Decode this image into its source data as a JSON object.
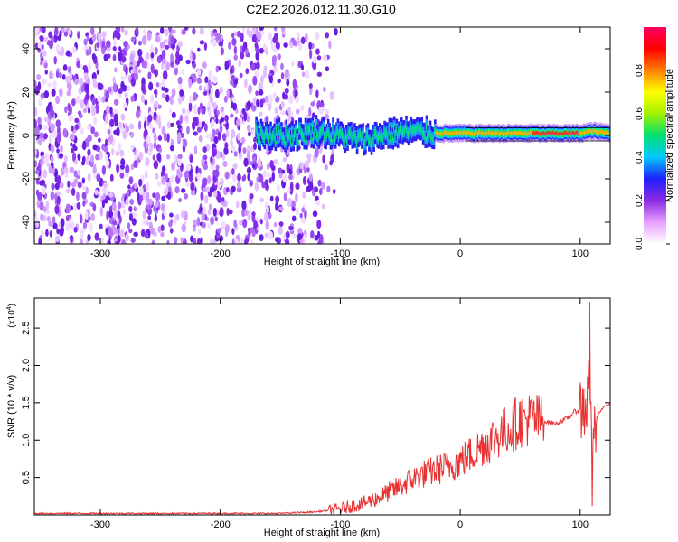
{
  "title": "C2E2.2026.012.11.30.G10",
  "chart_data": [
    {
      "type": "heatmap",
      "xlabel": "Height of straight line (km)",
      "ylabel": "Frequency (Hz)",
      "xlim": [
        -355,
        125
      ],
      "ylim": [
        -50,
        50
      ],
      "xticks": [
        -300,
        -200,
        -100,
        0,
        100
      ],
      "yticks": [
        -40,
        -20,
        0,
        20,
        40
      ],
      "xticklabels": [
        "-300",
        "-200",
        "-100",
        "0",
        "100"
      ],
      "yticklabels": [
        "-40",
        "-20",
        "0",
        "20",
        "40"
      ],
      "colorbar": {
        "label": "Normalized spectral amplitude",
        "range": [
          0,
          1
        ],
        "ticks": [
          0.0,
          0.2,
          0.4,
          0.6,
          0.8
        ],
        "ticklabels": [
          "0.0",
          "0.2",
          "0.4",
          "0.6",
          "0.8"
        ],
        "colors": [
          "#ffffff",
          "#e8a0ff",
          "#8a2be2",
          "#2020ff",
          "#00c8ff",
          "#00e070",
          "#a0f000",
          "#ffff00",
          "#ff8000",
          "#ff0000",
          "#ff0060"
        ]
      },
      "features": {
        "noise_region_x": [
          -355,
          -140
        ],
        "signal_centerline": [
          [
            -170,
            1
          ],
          [
            -140,
            0
          ],
          [
            -120,
            2
          ],
          [
            -100,
            0
          ],
          [
            -80,
            -2
          ],
          [
            -60,
            1
          ],
          [
            -40,
            2
          ],
          [
            -20,
            1
          ],
          [
            0,
            1
          ],
          [
            20,
            1
          ],
          [
            40,
            1
          ],
          [
            60,
            1
          ],
          [
            80,
            1
          ],
          [
            100,
            1
          ],
          [
            110,
            2
          ],
          [
            125,
            1
          ]
        ]
      }
    },
    {
      "type": "line",
      "xlabel": "Height of straight line (km)",
      "ylabel": "SNR (10 * v/v)",
      "y_multiplier": "(x10",
      "y_multiplier_exp": "4",
      "xlim": [
        -355,
        125
      ],
      "ylim": [
        0,
        2.9
      ],
      "xticks": [
        -300,
        -200,
        -100,
        0,
        100
      ],
      "yticks": [
        0.5,
        1.0,
        1.5,
        2.0,
        2.5
      ],
      "xticklabels": [
        "-300",
        "-200",
        "-100",
        "0",
        "100"
      ],
      "yticklabels": [
        "0.5",
        "1.0",
        "1.5",
        "2.0",
        "2.5"
      ],
      "line_color": "#e83232",
      "series": [
        {
          "x": [
            -355,
            -300,
            -250,
            -200,
            -150,
            -120,
            -100,
            -90,
            -80,
            -70,
            -60,
            -50,
            -40,
            -30,
            -20,
            -10,
            0,
            10,
            20,
            30,
            40,
            50,
            60,
            70,
            80,
            90,
            95,
            100,
            103,
            106,
            108,
            110,
            112,
            115,
            120,
            125
          ],
          "y": [
            0.02,
            0.02,
            0.02,
            0.02,
            0.02,
            0.04,
            0.08,
            0.12,
            0.16,
            0.22,
            0.3,
            0.38,
            0.48,
            0.55,
            0.6,
            0.65,
            0.72,
            0.82,
            0.95,
            1.05,
            1.15,
            1.27,
            1.28,
            1.25,
            1.22,
            1.3,
            1.38,
            1.4,
            1.45,
            1.5,
            2.0,
            0.2,
            1.2,
            1.35,
            1.45,
            1.48
          ]
        }
      ]
    }
  ]
}
